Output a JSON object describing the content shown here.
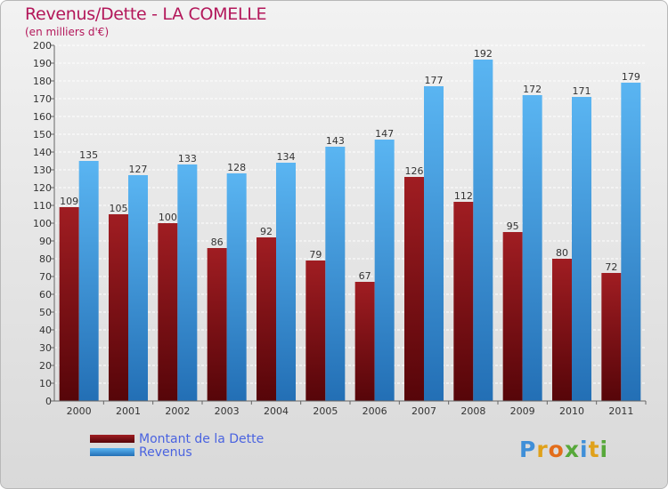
{
  "chart_data": {
    "type": "bar",
    "title": "Revenus/Dette - LA COMELLE",
    "subtitle": "(en milliers d'€)",
    "categories": [
      "2000",
      "2001",
      "2002",
      "2003",
      "2004",
      "2005",
      "2006",
      "2007",
      "2008",
      "2009",
      "2010",
      "2011"
    ],
    "series": [
      {
        "name": "Montant de la Dette",
        "values": [
          109,
          105,
          100,
          86,
          92,
          79,
          67,
          126,
          112,
          95,
          80,
          72
        ]
      },
      {
        "name": "Revenus",
        "values": [
          135,
          127,
          133,
          128,
          134,
          143,
          147,
          177,
          192,
          172,
          171,
          179
        ]
      }
    ],
    "ylim": [
      0,
      200
    ],
    "ytick_step": 10,
    "grid": true,
    "legend_position": "bottom-left"
  },
  "colors": {
    "debt_top": "#a01d22",
    "debt_bottom": "#560509",
    "revenue_top": "#5ab5f2",
    "revenue_bottom": "#236fb5",
    "title": "#b3175a",
    "legend_text": "#4a63e0"
  },
  "logo": {
    "text": "Proxiti",
    "letters": [
      "P",
      "r",
      "o",
      "x",
      "i",
      "t",
      "i"
    ]
  }
}
